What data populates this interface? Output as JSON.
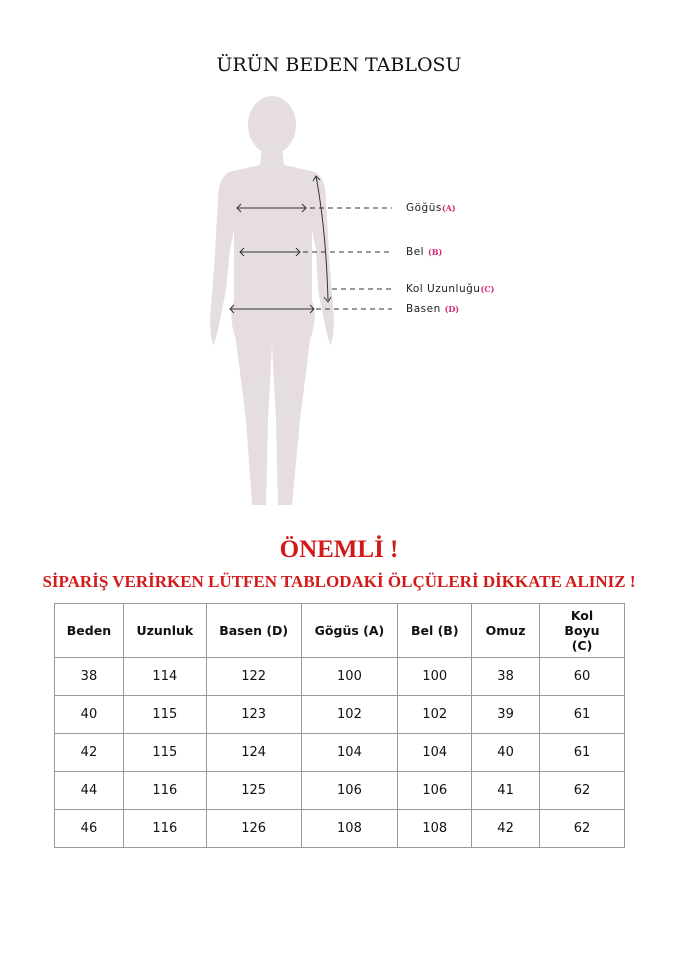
{
  "title": "ÜRÜN BEDEN TABLOSU",
  "figure": {
    "labels": [
      {
        "name": "Göğüs",
        "code": "(A)"
      },
      {
        "name": "Bel",
        "code": "(B)"
      },
      {
        "name": "Kol Uzunluğu",
        "code": "(C)"
      },
      {
        "name": "Basen",
        "code": "(D)"
      }
    ],
    "silhouette_color": "#e6dede",
    "code_color": "#d4287a"
  },
  "notice": {
    "heading": "ÖNEMLİ !",
    "text": "SİPARİŞ VERİRKEN LÜTFEN TABLODAKİ ÖLÇÜLERİ DİKKATE ALINIZ !",
    "color": "#d11a1a"
  },
  "table": {
    "headers": [
      "Beden",
      "Uzunluk",
      "Basen (D)",
      "Gögüs (A)",
      "Bel (B)",
      "Omuz",
      "Kol Boyu (C)"
    ],
    "rows": [
      [
        "38",
        "114",
        "122",
        "100",
        "100",
        "38",
        "60"
      ],
      [
        "40",
        "115",
        "123",
        "102",
        "102",
        "39",
        "61"
      ],
      [
        "42",
        "115",
        "124",
        "104",
        "104",
        "40",
        "61"
      ],
      [
        "44",
        "116",
        "125",
        "106",
        "106",
        "41",
        "62"
      ],
      [
        "46",
        "116",
        "126",
        "108",
        "108",
        "42",
        "62"
      ]
    ]
  }
}
